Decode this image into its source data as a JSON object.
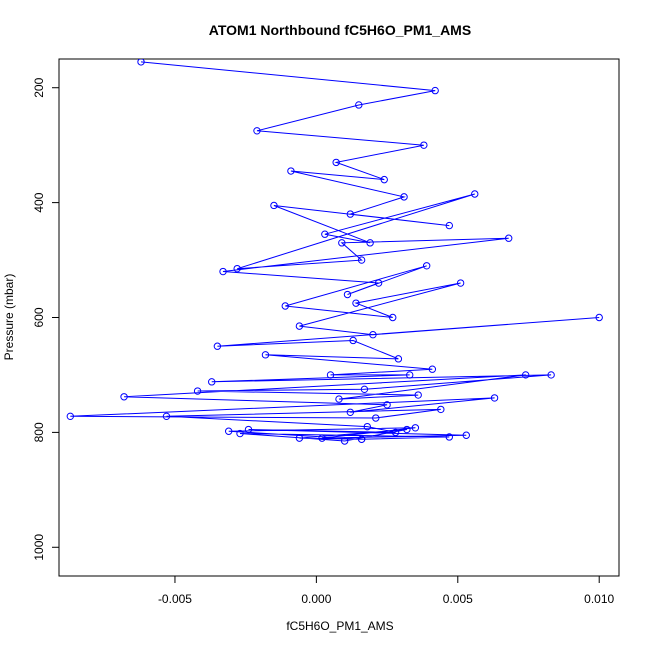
{
  "chart_data": {
    "type": "line",
    "title": "ATOM1 Northbound fC5H6O_PM1_AMS",
    "xlabel": "fC5H6O_PM1_AMS",
    "ylabel": "Pressure (mbar)",
    "xlim": [
      -0.0091,
      0.0107
    ],
    "ylim": [
      1050,
      150
    ],
    "y_reversed": true,
    "x_ticks": [
      -0.005,
      0.0,
      0.005,
      0.01
    ],
    "x_tick_labels": [
      "-0.005",
      "0.000",
      "0.005",
      "0.010"
    ],
    "y_ticks": [
      200,
      400,
      600,
      800,
      1000
    ],
    "y_tick_labels": [
      "200",
      "400",
      "600",
      "800",
      "1000"
    ],
    "grid": false,
    "markers": "open-circle",
    "series": [
      {
        "color": "#0000ff",
        "x": [
          -0.0062,
          0.0042,
          0.0015,
          -0.0021,
          0.0038,
          0.0007,
          0.0024,
          -0.0009,
          0.0031,
          0.0012,
          0.0047,
          -0.0015,
          0.0019,
          0.0003,
          0.0056,
          -0.0028,
          0.0016,
          0.0009,
          0.0068,
          -0.0033,
          0.0022,
          0.0011,
          0.0039,
          -0.0011,
          0.0027,
          0.0014,
          0.0051,
          -0.0006,
          0.002,
          0.01,
          -0.0035,
          0.0013,
          0.0029,
          -0.0018,
          0.0041,
          0.0005,
          0.0033,
          -0.0037,
          0.0083,
          0.0017,
          -0.0042,
          0.0036,
          0.0008,
          0.0074,
          -0.0068,
          0.0025,
          0.0012,
          0.0063,
          -0.0087,
          0.0021,
          0.0044,
          -0.0053,
          0.0018,
          0.0028,
          -0.0024,
          0.0053,
          0.0002,
          0.0035,
          -0.0031,
          0.0016,
          0.0047,
          -0.0027,
          0.001,
          0.0032,
          -0.0006,
          0.0016
        ],
        "y": [
          155,
          205,
          230,
          275,
          300,
          330,
          360,
          345,
          390,
          420,
          440,
          405,
          470,
          455,
          385,
          515,
          500,
          470,
          462,
          520,
          540,
          560,
          510,
          580,
          600,
          575,
          540,
          615,
          630,
          600,
          650,
          640,
          672,
          665,
          690,
          700,
          700,
          712,
          700,
          725,
          728,
          735,
          742,
          700,
          738,
          752,
          765,
          740,
          772,
          775,
          760,
          772,
          790,
          800,
          795,
          805,
          810,
          792,
          798,
          812,
          808,
          802,
          815,
          795,
          810,
          812
        ]
      }
    ]
  }
}
